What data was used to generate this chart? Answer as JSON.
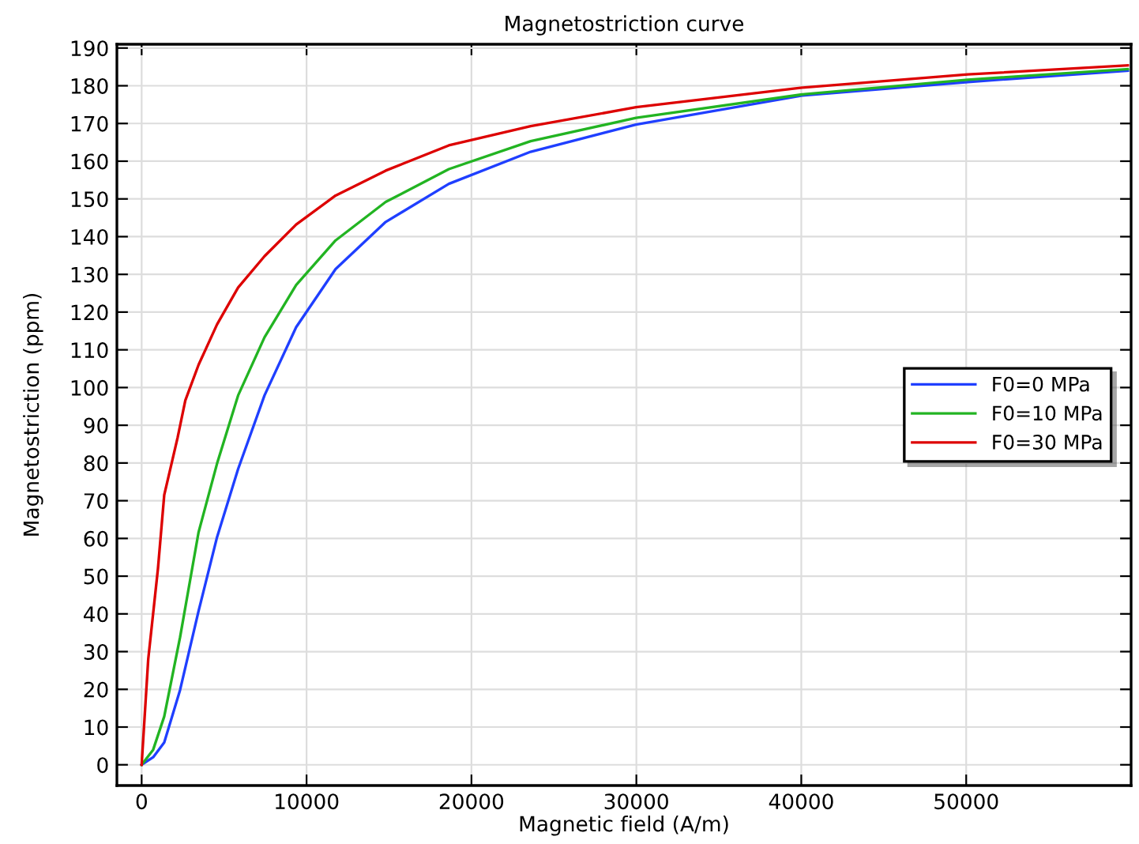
{
  "chart_data": {
    "type": "line",
    "title": "Magnetostriction curve",
    "xlabel": "Magnetic field (A/m)",
    "ylabel": "Magnetostriction (ppm)",
    "xlim": [
      -1500,
      60000
    ],
    "ylim": [
      -5.5,
      191
    ],
    "xticks": [
      0,
      10000,
      20000,
      30000,
      40000,
      50000
    ],
    "yticks": [
      0,
      10,
      20,
      30,
      40,
      50,
      60,
      70,
      80,
      90,
      100,
      110,
      120,
      130,
      140,
      150,
      160,
      170,
      180,
      190
    ],
    "grid": true,
    "legend": "right",
    "line_style": "solid",
    "marker": "none",
    "series": [
      {
        "name": "F0=0 MPa",
        "color": "#1f3fff",
        "x": [
          0,
          700,
          1370,
          2330,
          3450,
          4570,
          5850,
          7450,
          9370,
          11760,
          14800,
          18630,
          23590,
          29980,
          40050,
          50100,
          59800
        ],
        "values": [
          0,
          2,
          5.9,
          19.8,
          40.7,
          60.3,
          78.4,
          97.9,
          116,
          131.4,
          143.9,
          154,
          162.5,
          169.7,
          177.4,
          181,
          184
        ]
      },
      {
        "name": "F0=10 MPa",
        "color": "#22b422",
        "x": [
          0,
          700,
          1370,
          2330,
          3450,
          4570,
          5850,
          7450,
          9370,
          11760,
          14800,
          18630,
          23590,
          29980,
          40050,
          50100,
          59800
        ],
        "values": [
          0,
          4,
          12.8,
          33.8,
          61.6,
          79.8,
          97.9,
          113.3,
          127.2,
          139,
          149.2,
          157.9,
          165.3,
          171.5,
          177.7,
          181.6,
          184.4
        ]
      },
      {
        "name": "F0=30 MPa",
        "color": "#dd0000",
        "x": [
          0,
          400,
          990,
          1370,
          2180,
          2650,
          3450,
          4570,
          5850,
          7450,
          9370,
          11760,
          14800,
          18630,
          23590,
          29980,
          40050,
          50100,
          59800
        ],
        "values": [
          0,
          28,
          52,
          71.5,
          86.7,
          96.6,
          106,
          116.7,
          126.5,
          134.8,
          143.2,
          150.9,
          157.5,
          164.2,
          169.3,
          174.3,
          179.5,
          183,
          185.4
        ]
      }
    ]
  }
}
